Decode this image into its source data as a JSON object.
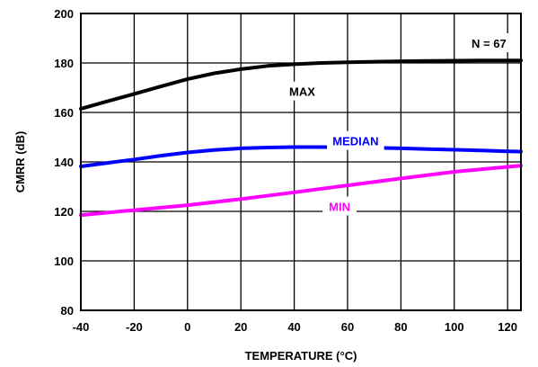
{
  "chart_data": {
    "type": "line",
    "xlabel": "TEMPERATURE (°C)",
    "ylabel": "CMRR (dB)",
    "xlim": [
      -40,
      125
    ],
    "ylim": [
      80,
      200
    ],
    "x_ticks": [
      -40,
      -20,
      0,
      20,
      40,
      60,
      80,
      100,
      120
    ],
    "y_ticks": [
      80,
      100,
      120,
      140,
      160,
      180,
      200
    ],
    "grid": true,
    "series": [
      {
        "name": "MAX",
        "color": "#000000",
        "x": [
          -40,
          -30,
          -20,
          -10,
          0,
          10,
          20,
          30,
          40,
          50,
          60,
          70,
          80,
          90,
          100,
          110,
          120,
          125
        ],
        "values": [
          161.5,
          164.5,
          167.5,
          170.5,
          173.5,
          175.8,
          177.5,
          178.8,
          179.5,
          180.0,
          180.3,
          180.5,
          180.7,
          180.8,
          180.9,
          181.0,
          181.0,
          181.0
        ]
      },
      {
        "name": "MEDIAN",
        "color": "#0000ff",
        "x": [
          -40,
          -30,
          -20,
          -10,
          0,
          10,
          20,
          30,
          40,
          50,
          60,
          70,
          80,
          90,
          100,
          110,
          120,
          125
        ],
        "values": [
          138.2,
          139.6,
          141.0,
          142.5,
          143.8,
          144.8,
          145.5,
          145.8,
          146.0,
          146.0,
          145.9,
          145.7,
          145.5,
          145.2,
          144.9,
          144.6,
          144.3,
          144.2
        ]
      },
      {
        "name": "MIN",
        "color": "#ff00ff",
        "x": [
          -40,
          -20,
          0,
          20,
          40,
          60,
          80,
          100,
          120,
          125
        ],
        "values": [
          118.5,
          120.5,
          122.5,
          125.0,
          127.7,
          130.5,
          133.3,
          136.0,
          138.0,
          138.5
        ]
      }
    ],
    "annotations": [
      {
        "text": "N = 67",
        "x": 113,
        "y": 188,
        "color": "#000000"
      },
      {
        "text": "MAX",
        "x": 43,
        "y": 168.5,
        "color": "#000000"
      },
      {
        "text": "MEDIAN",
        "x": 63,
        "y": 148.5,
        "color": "#0000ff"
      },
      {
        "text": "MIN",
        "x": 57,
        "y": 122,
        "color": "#ff00ff"
      }
    ]
  }
}
